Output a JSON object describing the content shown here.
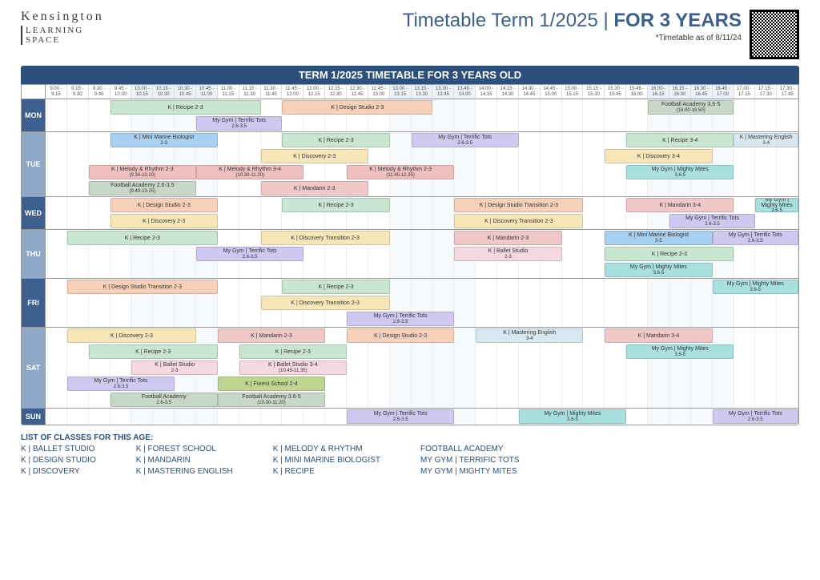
{
  "logo": {
    "l1": "Kensington",
    "l2": "LEARNING",
    "l3": "SPACE"
  },
  "title": {
    "a": "Timetable Term 1/2025 | ",
    "b": "FOR 3 YEARS"
  },
  "asof": "*Timetable as of 8/11/24",
  "banner": "TERM 1/2025 TIMETABLE FOR 3 YEARS OLD",
  "nSlots": 35,
  "startH": 9.0,
  "slotMin": 15,
  "accentCols": [
    4,
    5,
    6,
    7,
    16,
    17,
    18,
    19,
    28,
    29,
    30,
    31
  ],
  "colors": {
    "recipe": "#c8e6d0",
    "design": "#f6d0b8",
    "gym_tt": "#d0c8f0",
    "marine": "#a8d0f0",
    "discovery": "#f6e6b8",
    "melody": "#f0c0c0",
    "football": "#c8d8c8",
    "mandarin": "#f0c8c8",
    "english": "#d8e8f0",
    "ballet": "#f6d8e0",
    "mighty": "#a8e0e0",
    "forest": "#c0d690",
    "transition": "#c8e6d0"
  },
  "dayColors": {
    "MON": "#3b5f8f",
    "TUE": "#8fa8c8",
    "WED": "#3b5f8f",
    "THU": "#8fa8c8",
    "FRI": "#3b5f8f",
    "SAT": "#8fa8c8",
    "SUN": "#3b5f8f"
  },
  "days": [
    {
      "name": "MON",
      "tracks": [
        [
          [
            "K | Recipe 2-3",
            "",
            3,
            7,
            "recipe"
          ],
          [
            "K | Design Studio 2-3",
            "",
            11,
            7,
            "design"
          ],
          [
            "Football Academy 3.6-5",
            "(16.00-16.50)",
            28,
            4,
            "football"
          ]
        ],
        [
          [
            "My Gym | Terrific Tots",
            "2.6-3.5",
            7,
            4,
            "gym_tt"
          ]
        ]
      ]
    },
    {
      "name": "TUE",
      "tracks": [
        [
          [
            "K | Mini Marine Biologist",
            "2-3",
            3,
            5,
            "marine"
          ],
          [
            "K | Recipe 2-3",
            "",
            11,
            5,
            "recipe"
          ],
          [
            "My Gym | Terrific Tots",
            "2.6-3.5",
            17,
            5,
            "gym_tt"
          ],
          [
            "K | Recipe 3-4",
            "",
            27,
            5,
            "recipe"
          ],
          [
            "K | Mastering English",
            "3-4",
            32,
            3,
            "english"
          ]
        ],
        [
          [
            "K | Discovery 2-3",
            "",
            10,
            5,
            "discovery"
          ],
          [
            "K | Discovery 3-4",
            "",
            26,
            5,
            "discovery"
          ]
        ],
        [
          [
            "K | Melody & Rhythm 2-3",
            "(9.30-10.20)",
            2,
            5,
            "melody"
          ],
          [
            "K | Melody & Rhythm 3-4",
            "(10.30-11.20)",
            7,
            5,
            "melody"
          ],
          [
            "K | Melody & Rhythm 2-3",
            "(11.45-12.35)",
            14,
            5,
            "melody"
          ],
          [
            "My Gym | Mighty Mites",
            "3.6-5",
            27,
            5,
            "mighty"
          ]
        ],
        [
          [
            "Football Academy 2.6-3.5",
            "(9.40-10.25)",
            2,
            5,
            "football"
          ],
          [
            "K | Mandarin 2-3",
            "",
            10,
            5,
            "mandarin"
          ]
        ]
      ]
    },
    {
      "name": "WED",
      "tracks": [
        [
          [
            "K | Design Studio 2-3",
            "",
            3,
            5,
            "design"
          ],
          [
            "K | Recipe 2-3",
            "",
            11,
            5,
            "recipe"
          ],
          [
            "K | Design Studio Transition 2-3",
            "",
            19,
            6,
            "design"
          ],
          [
            "K | Mandarin 3-4",
            "",
            27,
            5,
            "mandarin"
          ],
          [
            "My Gym | Mighty Mites",
            "3.6-5",
            33,
            2,
            "mighty"
          ]
        ],
        [
          [
            "K | Discovery 2-3",
            "",
            3,
            5,
            "discovery"
          ],
          [
            "K | Discovery Transition 2-3",
            "",
            19,
            6,
            "discovery"
          ],
          [
            "My Gym | Terrific Tots",
            "2.6-3.5",
            29,
            4,
            "gym_tt"
          ]
        ]
      ]
    },
    {
      "name": "THU",
      "tracks": [
        [
          [
            "K | Recipe 2-3",
            "",
            1,
            7,
            "recipe"
          ],
          [
            "K | Discovery Transition 2-3",
            "",
            10,
            6,
            "discovery"
          ],
          [
            "K | Mandarin 2-3",
            "",
            19,
            5,
            "mandarin"
          ],
          [
            "K | Mini Marine Biologist",
            "3-5",
            26,
            5,
            "marine"
          ],
          [
            "My Gym | Terrific Tots",
            "2.6-3.5",
            31,
            4,
            "gym_tt"
          ]
        ],
        [
          [
            "My Gym | Terrific Tots",
            "2.6-3.5",
            7,
            5,
            "gym_tt"
          ],
          [
            "K | Ballet Studio",
            "2-3",
            19,
            5,
            "ballet"
          ],
          [
            "K | Recipe 2-3",
            "",
            26,
            6,
            "recipe"
          ]
        ],
        [
          [
            "My Gym | Mighty Mites",
            "3.6-5",
            26,
            5,
            "mighty"
          ]
        ]
      ]
    },
    {
      "name": "FRI",
      "tracks": [
        [
          [
            "K | Design Studio Transition 2-3",
            "",
            1,
            7,
            "design"
          ],
          [
            "K | Recipe 2-3",
            "",
            11,
            5,
            "recipe"
          ],
          [
            "My Gym | Mighty Mites",
            "3.6-5",
            31,
            4,
            "mighty"
          ]
        ],
        [
          [
            "K | Discovery Transition 2-3",
            "",
            10,
            6,
            "discovery"
          ]
        ],
        [
          [
            "My Gym | Terrific Tots",
            "2.6-3.5",
            14,
            5,
            "gym_tt"
          ]
        ]
      ]
    },
    {
      "name": "SAT",
      "tracks": [
        [
          [
            "K | Discovery 2-3",
            "",
            1,
            6,
            "discovery"
          ],
          [
            "K | Mandarin 2-3",
            "",
            8,
            5,
            "mandarin"
          ],
          [
            "K | Design Studio 2-3",
            "",
            14,
            5,
            "design"
          ],
          [
            "K | Mastering English",
            "3-4",
            20,
            5,
            "english"
          ],
          [
            "K | Mandarin 3-4",
            "",
            26,
            5,
            "mandarin"
          ]
        ],
        [
          [
            "K | Recipe 2-3",
            "",
            2,
            6,
            "recipe"
          ],
          [
            "K | Recipe 2-3",
            "",
            9,
            5,
            "recipe"
          ],
          [
            "My Gym | Mighty Mites",
            "3.6-5",
            27,
            5,
            "mighty"
          ]
        ],
        [
          [
            "K | Ballet Studio",
            "2-3",
            4,
            4,
            "ballet"
          ],
          [
            "K | Ballet Studio 3-4",
            "(10.45-11.35)",
            9,
            5,
            "ballet"
          ]
        ],
        [
          [
            "My Gym | Terrific Tots",
            "2.6-3.5",
            1,
            5,
            "gym_tt"
          ],
          [
            "K | Forest School 2-4",
            "",
            8,
            5,
            "forest"
          ]
        ],
        [
          [
            "Football Academy",
            "2.6-3.5",
            3,
            5,
            "football"
          ],
          [
            "Football Academy 3.6-5",
            "(10.30-11.20)",
            8,
            5,
            "football"
          ]
        ]
      ]
    },
    {
      "name": "SUN",
      "tracks": [
        [
          [
            "My Gym | Terrific Tots",
            "2.6-3.5",
            14,
            5,
            "gym_tt"
          ],
          [
            "My Gym | Mighty Mites",
            "3.6-5",
            22,
            5,
            "mighty"
          ],
          [
            "My Gym | Terrific Tots",
            "2.6-3.5",
            31,
            4,
            "gym_tt"
          ]
        ]
      ]
    }
  ],
  "legendTitle": "LIST OF CLASSES FOR THIS AGE:",
  "legend": [
    [
      "K | BALLET STUDIO",
      "K | DESIGN STUDIO",
      "K | DISCOVERY"
    ],
    [
      "K | FOREST SCHOOL",
      "K | MANDARIN",
      "K | MASTERING ENGLISH"
    ],
    [
      "K | MELODY & RHYTHM",
      "K | MINI MARINE BIOLOGIST",
      "K | RECIPE"
    ],
    [
      "FOOTBALL ACADEMY",
      "MY GYM | TERRIFIC TOTS",
      "MY GYM | MIGHTY MITES"
    ]
  ]
}
